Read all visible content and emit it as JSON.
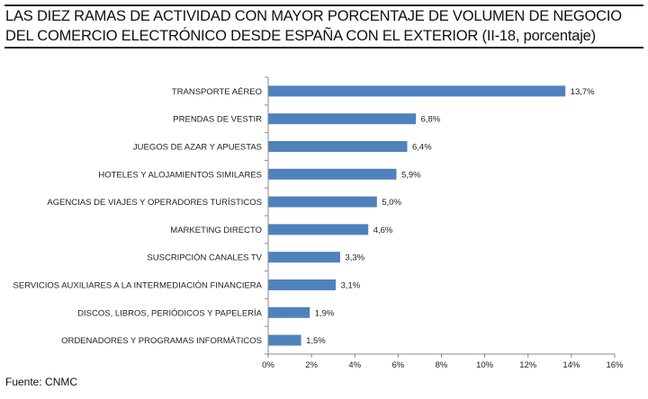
{
  "title_lines": [
    "LAS DIEZ RAMAS DE ACTIVIDAD CON MAYOR PORCENTAJE DE VOLUMEN DE NEGOCIO",
    "DEL COMERCIO ELECTRÓNICO DESDE ESPAÑA CON EL EXTERIOR (II-18, porcentaje)"
  ],
  "source": "Fuente: CNMC",
  "chart_data": {
    "type": "bar",
    "orientation": "horizontal",
    "title": "LAS DIEZ RAMAS DE ACTIVIDAD CON MAYOR PORCENTAJE DE VOLUMEN DE NEGOCIO DEL COMERCIO ELECTRÓNICO DESDE ESPAÑA CON EL EXTERIOR (II-18, porcentaje)",
    "categories": [
      "TRANSPORTE AÉREO",
      "PRENDAS DE VESTIR",
      "JUEGOS DE AZAR Y APUESTAS",
      "HOTELES  Y ALOJAMIENTOS SIMILARES",
      "AGENCIAS DE VIAJES Y OPERADORES TURÍSTICOS",
      "MARKETING DIRECTO",
      "SUSCRIPCIÓN CANALES TV",
      "SERVICIOS AUXILIARES A LA INTERMEDIACIÓN FINANCIERA",
      "DISCOS, LIBROS, PERIÓDICOS Y PAPELERÍA",
      "ORDENADORES Y PROGRAMAS INFORMÁTICOS"
    ],
    "values": [
      13.7,
      6.8,
      6.4,
      5.9,
      5.0,
      4.6,
      3.3,
      3.1,
      1.9,
      1.5
    ],
    "value_labels": [
      "13,7%",
      "6,8%",
      "6,4%",
      "5,9%",
      "5,0%",
      "4,6%",
      "3,3%",
      "3,1%",
      "1,9%",
      "1,5%"
    ],
    "xlim": [
      0,
      16
    ],
    "xticks": [
      0,
      2,
      4,
      6,
      8,
      10,
      12,
      14,
      16
    ],
    "xtick_labels": [
      "0%",
      "2%",
      "4%",
      "6%",
      "8%",
      "10%",
      "12%",
      "14%",
      "16%"
    ],
    "xlabel": "",
    "ylabel": "",
    "grid": false,
    "bar_color": "#4f81bd"
  }
}
